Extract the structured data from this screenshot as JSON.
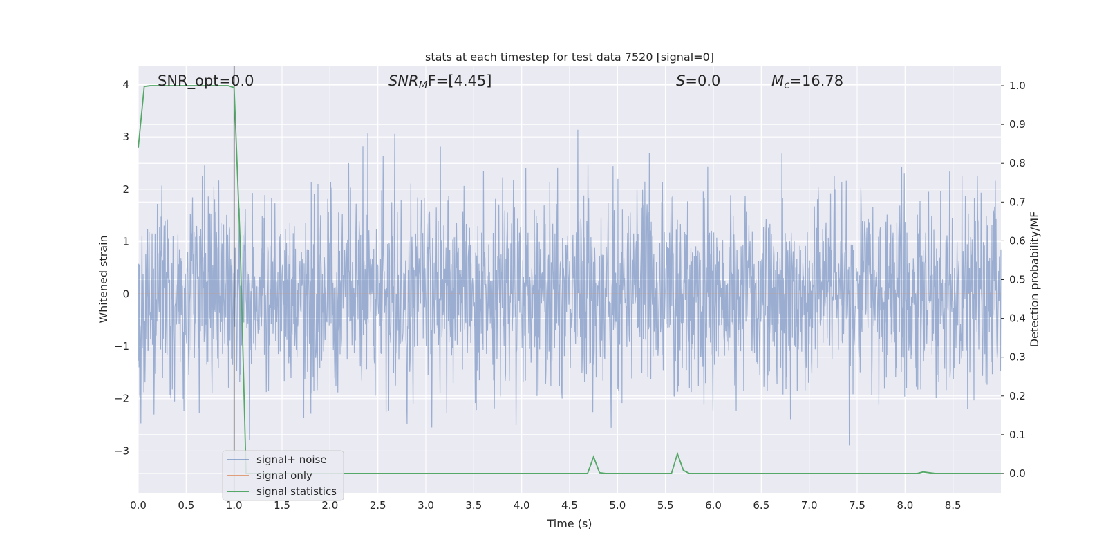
{
  "chart_data": {
    "type": "line",
    "title": "stats at each timestep for test data 7520 [signal=0]",
    "xlabel": "Time (s)",
    "ylabel": "Whitened strain",
    "ylabel_right": "Detection probability/MF",
    "xlim": [
      0.0,
      9.0
    ],
    "ylim": [
      -3.8,
      4.35
    ],
    "ylim_right": [
      -0.05,
      1.05
    ],
    "xticks": [
      "0.0",
      "0.5",
      "1.0",
      "1.5",
      "2.0",
      "2.5",
      "3.0",
      "3.5",
      "4.0",
      "4.5",
      "5.0",
      "5.5",
      "6.0",
      "6.5",
      "7.0",
      "7.5",
      "8.0",
      "8.5"
    ],
    "yticks": [
      "−3",
      "−2",
      "−1",
      "0",
      "1",
      "2",
      "3",
      "4"
    ],
    "yticks_right": [
      "0.0",
      "0.1",
      "0.2",
      "0.3",
      "0.4",
      "0.5",
      "0.6",
      "0.7",
      "0.8",
      "0.9",
      "1.0"
    ],
    "grid": true,
    "legend_position": "lower-left",
    "annotations": {
      "snr_opt": "SNR_opt=0.0",
      "snr_mf_base": "SNR",
      "snr_mf_sub": "M",
      "snr_mf_rest": "F=[4.45]",
      "s_sym": "S",
      "s_val": "=0.0",
      "mc_sym": "M",
      "mc_sub": "c",
      "mc_val": "=16.78"
    },
    "series": [
      {
        "name": "signal+ noise",
        "color": "#4c72b0",
        "kind": "noise",
        "sample_rate": 256,
        "duration": 9.0,
        "y_range": [
          -3.4,
          4.0
        ]
      },
      {
        "name": "signal only",
        "color": "#dd8452",
        "x": [
          0.0,
          9.0
        ],
        "y": [
          0.0,
          0.0
        ]
      },
      {
        "name": "signal statistics",
        "color": "#55a868",
        "axis": "right",
        "x": [
          0.0,
          0.0625,
          0.125,
          0.5,
          0.9375,
          1.0,
          1.0625,
          1.125,
          1.25,
          4.6875,
          4.75,
          4.8125,
          4.875,
          5.5625,
          5.625,
          5.6875,
          5.75,
          8.125,
          8.1875,
          8.3125,
          9.0
        ],
        "y": [
          0.84,
          0.998,
          1.0,
          1.0,
          1.0,
          0.995,
          0.6,
          0.0,
          0.0,
          0.0,
          0.043,
          0.002,
          0.0,
          0.0,
          0.051,
          0.008,
          0.0,
          0.0,
          0.004,
          0.0,
          0.0
        ]
      }
    ],
    "vline": {
      "x": 1.0,
      "color": "#4a4a4a"
    }
  }
}
